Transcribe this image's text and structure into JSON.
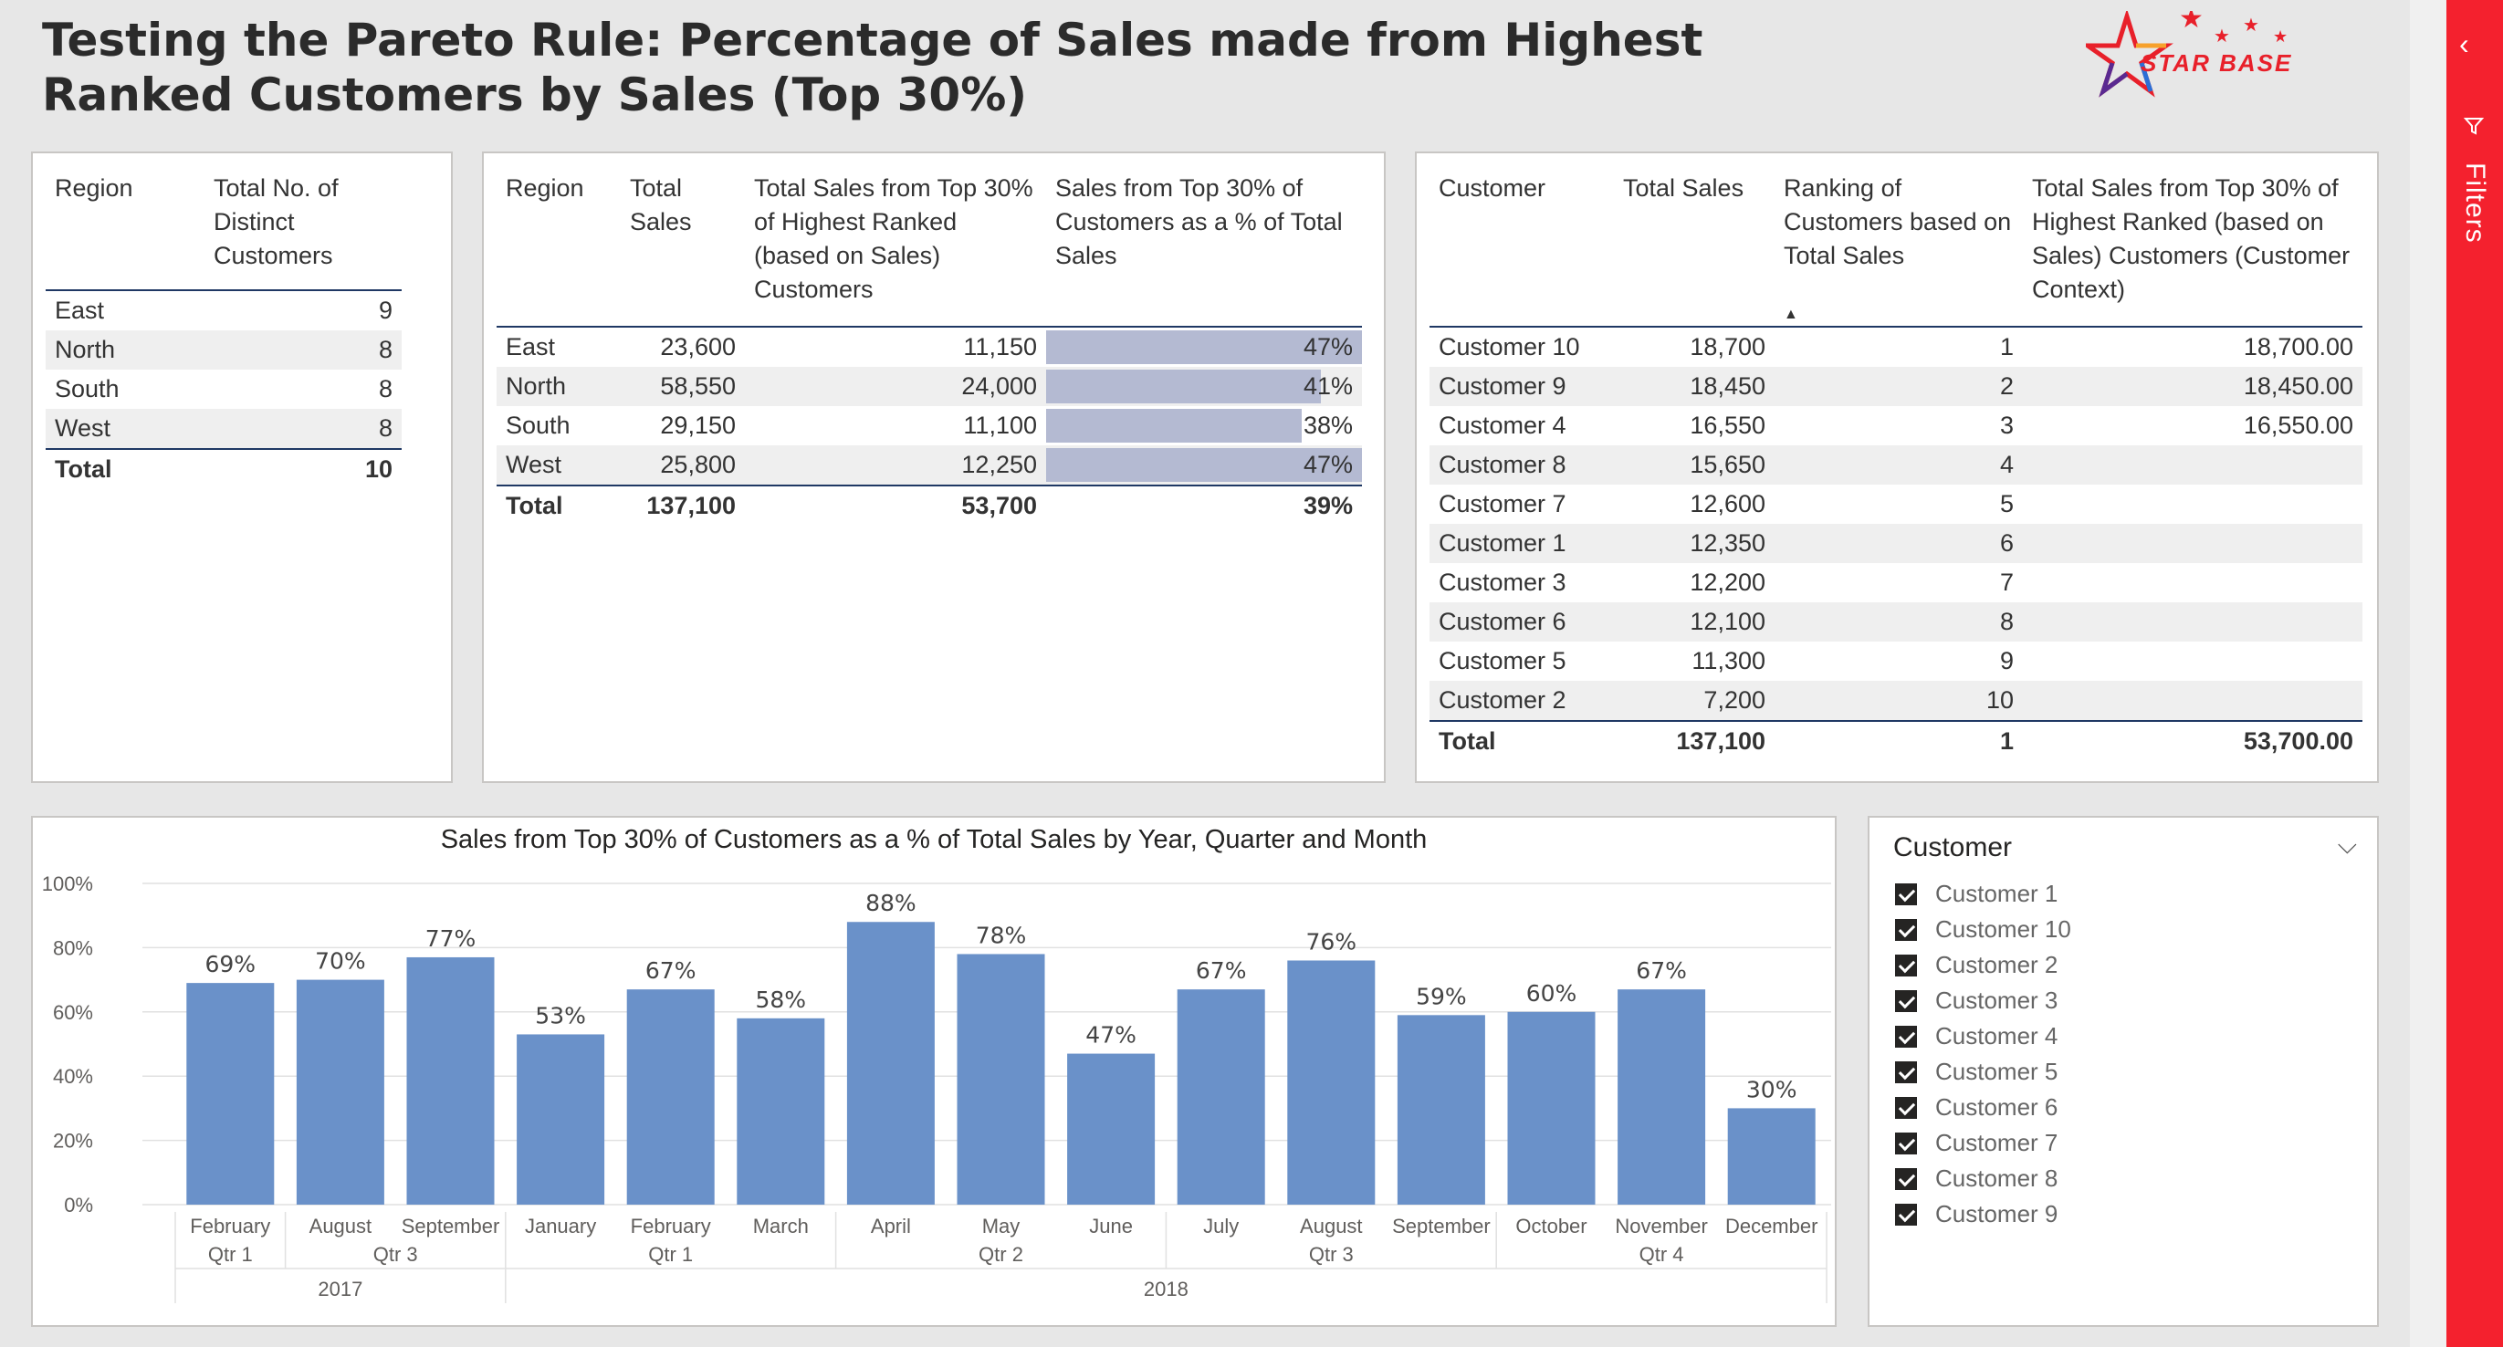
{
  "title": "Testing the Pareto Rule: Percentage of Sales made from Highest Ranked Customers by Sales (Top 30%)",
  "logo": {
    "text": "STAR BASE",
    "colors": [
      "#e8202a",
      "#f7a12b",
      "#2b6ed6",
      "#5a2a91"
    ]
  },
  "table1": {
    "headers": [
      "Region",
      "Total No. of Distinct Customers"
    ],
    "rows": [
      [
        "East",
        "9"
      ],
      [
        "North",
        "8"
      ],
      [
        "South",
        "8"
      ],
      [
        "West",
        "8"
      ]
    ],
    "total": [
      "Total",
      "10"
    ]
  },
  "table2": {
    "headers": [
      "Region",
      "Total Sales",
      "Total Sales from Top 30% of Highest Ranked (based on Sales) Customers",
      "Sales from Top 30% of Customers as a % of Total Sales"
    ],
    "rows": [
      [
        "East",
        "23,600",
        "11,150",
        "47%"
      ],
      [
        "North",
        "58,550",
        "24,000",
        "41%"
      ],
      [
        "South",
        "29,150",
        "11,100",
        "38%"
      ],
      [
        "West",
        "25,800",
        "12,250",
        "47%"
      ]
    ],
    "bar_fill": [
      1.0,
      0.87,
      0.81,
      1.0
    ],
    "total": [
      "Total",
      "137,100",
      "53,700",
      "39%"
    ]
  },
  "table3": {
    "headers": [
      "Customer",
      "Total Sales",
      "Ranking of Customers based on Total Sales",
      "Total Sales from Top 30% of Highest Ranked (based on Sales) Customers (Customer Context)"
    ],
    "rows": [
      [
        "Customer 10",
        "18,700",
        "1",
        "18,700.00"
      ],
      [
        "Customer 9",
        "18,450",
        "2",
        "18,450.00"
      ],
      [
        "Customer 4",
        "16,550",
        "3",
        "16,550.00"
      ],
      [
        "Customer 8",
        "15,650",
        "4",
        ""
      ],
      [
        "Customer 7",
        "12,600",
        "5",
        ""
      ],
      [
        "Customer 1",
        "12,350",
        "6",
        ""
      ],
      [
        "Customer 3",
        "12,200",
        "7",
        ""
      ],
      [
        "Customer 6",
        "12,100",
        "8",
        ""
      ],
      [
        "Customer 5",
        "11,300",
        "9",
        ""
      ],
      [
        "Customer 2",
        "7,200",
        "10",
        ""
      ]
    ],
    "total": [
      "Total",
      "137,100",
      "1",
      "53,700.00"
    ]
  },
  "chart_data": {
    "type": "bar",
    "title": "Sales from Top 30% of Customers as a % of Total Sales by Year, Quarter and Month",
    "categories": [
      "February",
      "August",
      "September",
      "January",
      "February",
      "March",
      "April",
      "May",
      "June",
      "July",
      "August",
      "September",
      "October",
      "November",
      "December"
    ],
    "values": [
      69,
      70,
      77,
      53,
      67,
      58,
      88,
      78,
      47,
      67,
      76,
      59,
      60,
      67,
      30
    ],
    "labels": [
      "69%",
      "70%",
      "77%",
      "53%",
      "67%",
      "58%",
      "88%",
      "78%",
      "47%",
      "67%",
      "76%",
      "59%",
      "60%",
      "67%",
      "30%"
    ],
    "ylim": [
      0,
      100
    ],
    "yticks": [
      "0%",
      "20%",
      "40%",
      "60%",
      "80%",
      "100%"
    ],
    "quarters": [
      {
        "label": "Qtr 1",
        "start": 0,
        "end": 0
      },
      {
        "label": "Qtr 3",
        "start": 1,
        "end": 2
      },
      {
        "label": "Qtr 1",
        "start": 3,
        "end": 5
      },
      {
        "label": "Qtr 2",
        "start": 6,
        "end": 8
      },
      {
        "label": "Qtr 3",
        "start": 9,
        "end": 11
      },
      {
        "label": "Qtr 4",
        "start": 12,
        "end": 14
      }
    ],
    "years": [
      {
        "label": "2017",
        "start": 0,
        "end": 2
      },
      {
        "label": "2018",
        "start": 3,
        "end": 14
      }
    ],
    "bar_color": "#6a91c9",
    "grid": true
  },
  "slicer": {
    "title": "Customer",
    "items": [
      "Customer 1",
      "Customer 10",
      "Customer 2",
      "Customer 3",
      "Customer 4",
      "Customer 5",
      "Customer 6",
      "Customer 7",
      "Customer 8",
      "Customer 9"
    ]
  },
  "filters": {
    "label": "Filters",
    "accent": "#f4212e"
  }
}
